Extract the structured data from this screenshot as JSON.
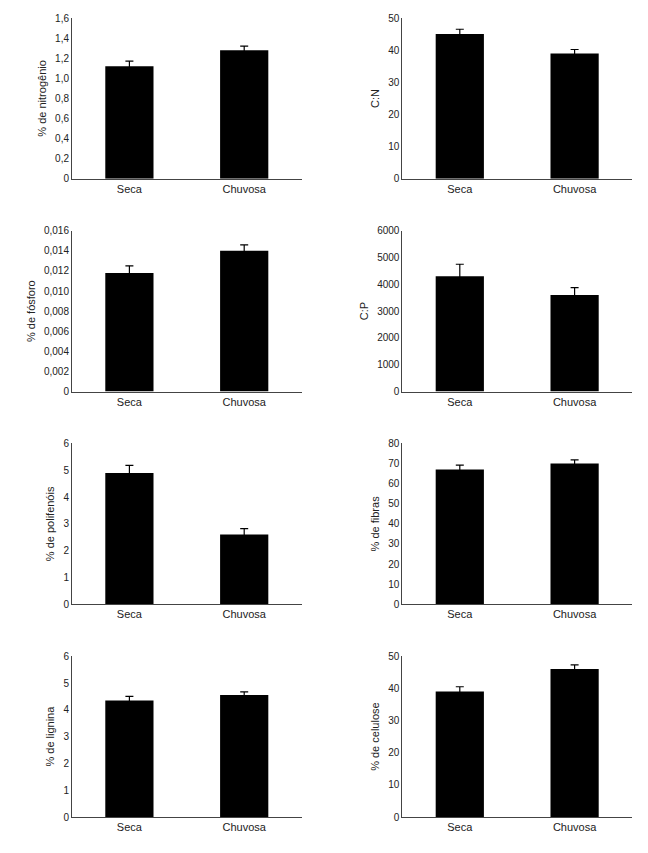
{
  "chart_data": [
    {
      "type": "bar",
      "ylabel": "% de nitrogênio",
      "categories": [
        "Seca",
        "Chuvosa"
      ],
      "values": [
        1.12,
        1.28
      ],
      "errors": [
        0.05,
        0.04
      ],
      "color": "#000000",
      "grid": false,
      "ylim": [
        0,
        1.6
      ],
      "yticks": [
        0,
        {
          "value": 0.2,
          "label": "0,2"
        },
        {
          "value": 0.4,
          "label": "0,4"
        },
        {
          "value": 0.6,
          "label": "0,6"
        },
        {
          "value": 0.8,
          "label": "0,8"
        },
        {
          "value": 1.0,
          "label": "1,0"
        },
        {
          "value": 1.2,
          "label": "1,2"
        },
        {
          "value": 1.4,
          "label": "1,4"
        },
        {
          "value": 1.6,
          "label": "1,6"
        }
      ]
    },
    {
      "type": "bar",
      "ylabel": "C:N",
      "categories": [
        "Seca",
        "Chuvosa"
      ],
      "values": [
        45,
        39
      ],
      "errors": [
        1.5,
        1.2
      ],
      "color": "#000000",
      "grid": false,
      "ylim": [
        0,
        50
      ],
      "yticks": [
        0,
        10,
        20,
        30,
        40,
        50
      ]
    },
    {
      "type": "bar",
      "ylabel": "% de fósforo",
      "categories": [
        "Seca",
        "Chuvosa"
      ],
      "values": [
        0.0118,
        0.014
      ],
      "errors": [
        0.0007,
        0.0006
      ],
      "color": "#000000",
      "grid": false,
      "ylim": [
        0,
        0.016
      ],
      "yticks": [
        0,
        {
          "value": 0.002,
          "label": "0,002"
        },
        {
          "value": 0.004,
          "label": "0,004"
        },
        {
          "value": 0.006,
          "label": "0,006"
        },
        {
          "value": 0.008,
          "label": "0,008"
        },
        {
          "value": 0.01,
          "label": "0,010"
        },
        {
          "value": 0.012,
          "label": "0,012"
        },
        {
          "value": 0.014,
          "label": "0,014"
        },
        {
          "value": 0.016,
          "label": "0,016"
        }
      ]
    },
    {
      "type": "bar",
      "ylabel": "C:P",
      "categories": [
        "Seca",
        "Chuvosa"
      ],
      "values": [
        4300,
        3600
      ],
      "errors": [
        450,
        280
      ],
      "color": "#000000",
      "grid": false,
      "ylim": [
        0,
        6000
      ],
      "yticks": [
        0,
        1000,
        2000,
        3000,
        4000,
        5000,
        6000
      ]
    },
    {
      "type": "bar",
      "ylabel": "% de polifenóis",
      "categories": [
        "Seca",
        "Chuvosa"
      ],
      "values": [
        4.9,
        2.6
      ],
      "errors": [
        0.28,
        0.22
      ],
      "color": "#000000",
      "grid": false,
      "ylim": [
        0,
        6
      ],
      "yticks": [
        0,
        1,
        2,
        3,
        4,
        5,
        6
      ]
    },
    {
      "type": "bar",
      "ylabel": "% de fibras",
      "categories": [
        "Seca",
        "Chuvosa"
      ],
      "values": [
        67,
        70
      ],
      "errors": [
        2.2,
        1.8
      ],
      "color": "#000000",
      "grid": false,
      "ylim": [
        0,
        80
      ],
      "yticks": [
        0,
        10,
        20,
        30,
        40,
        50,
        60,
        70,
        80
      ]
    },
    {
      "type": "bar",
      "ylabel": "% de lignina",
      "categories": [
        "Seca",
        "Chuvosa"
      ],
      "values": [
        4.35,
        4.55
      ],
      "errors": [
        0.15,
        0.12
      ],
      "color": "#000000",
      "grid": false,
      "ylim": [
        0,
        6
      ],
      "yticks": [
        0,
        1,
        2,
        3,
        4,
        5,
        6
      ]
    },
    {
      "type": "bar",
      "ylabel": "% de celulose",
      "categories": [
        "Seca",
        "Chuvosa"
      ],
      "values": [
        39,
        46
      ],
      "errors": [
        1.5,
        1.3
      ],
      "color": "#000000",
      "grid": false,
      "ylim": [
        0,
        50
      ],
      "yticks": [
        0,
        10,
        20,
        30,
        40,
        50
      ]
    }
  ]
}
